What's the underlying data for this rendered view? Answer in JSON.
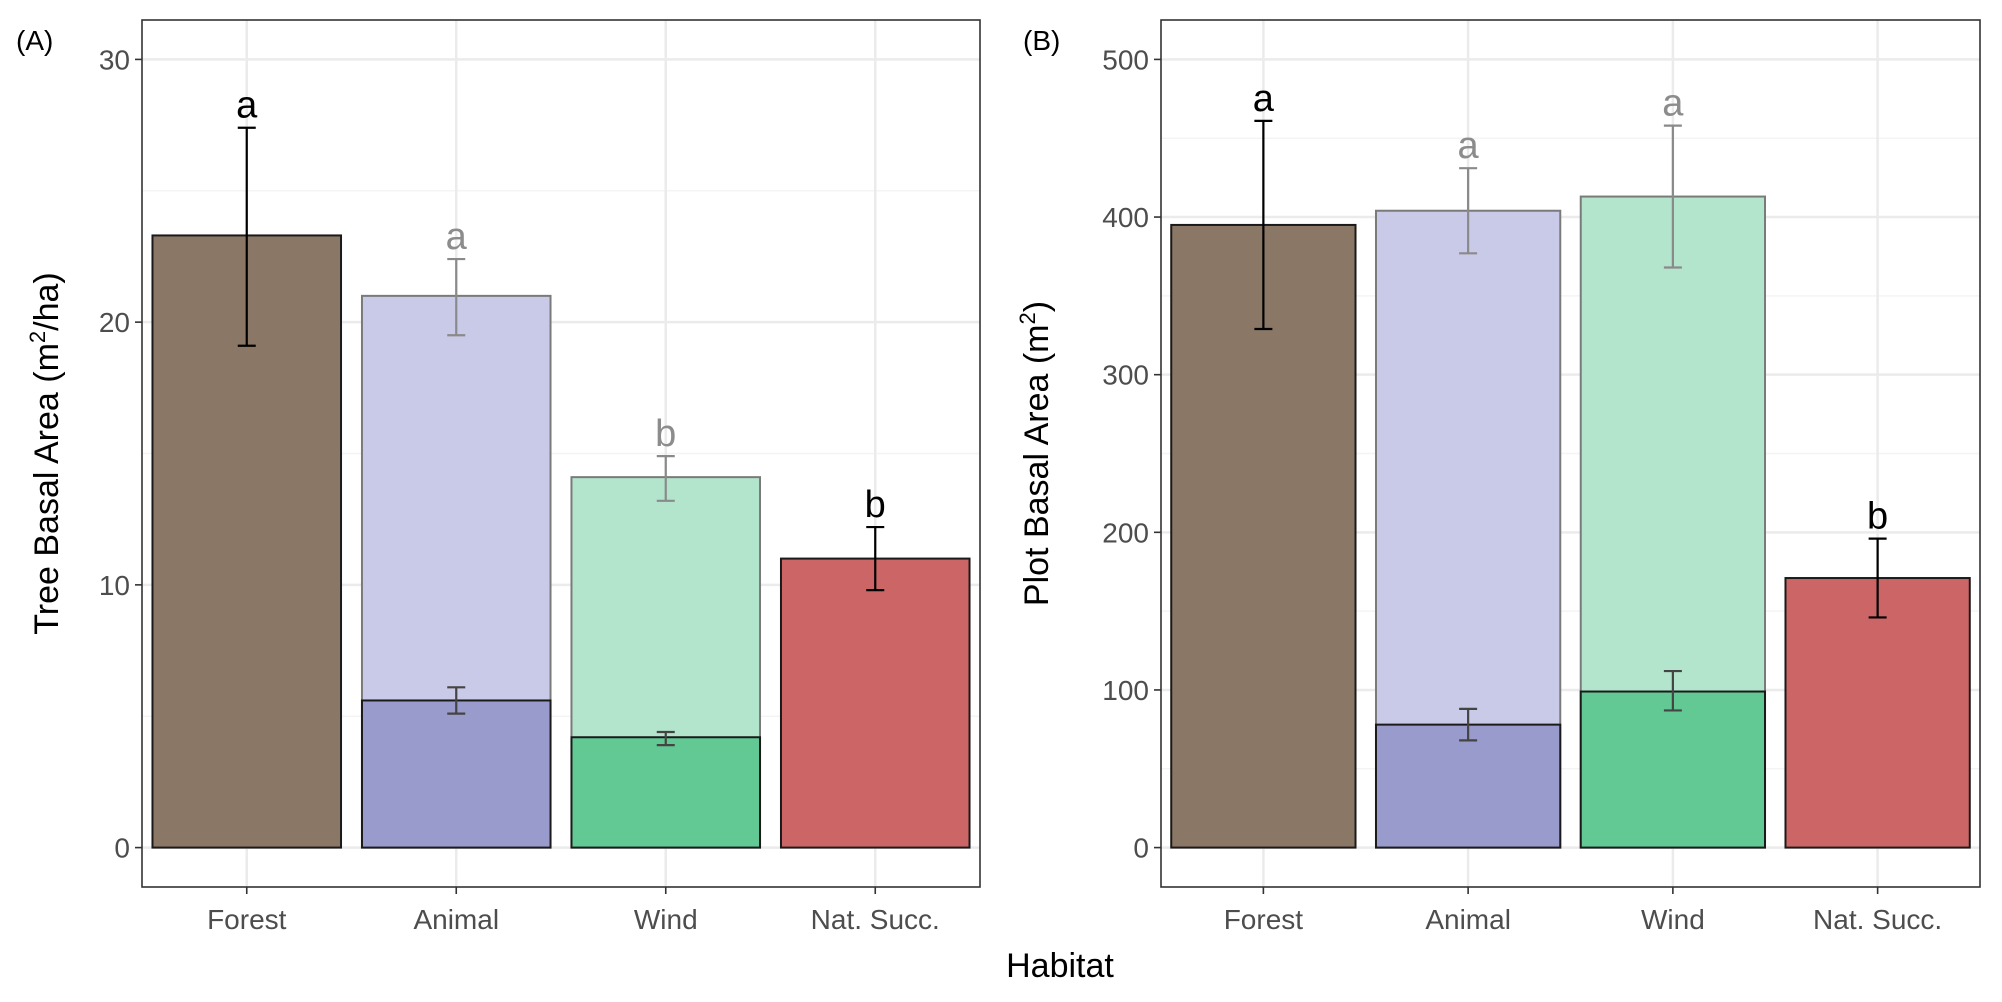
{
  "figure": {
    "shared_xlabel": "Habitat",
    "colors": {
      "forest": "#8b7765",
      "animal": "#9a9bcd",
      "animal_light": "#c9cae8",
      "wind": "#62c995",
      "wind_light": "#b3e4cc",
      "nat_succ": "#cc6566",
      "grid_major": "#ebebeb",
      "grid_minor": "#f4f4f4",
      "panel_border": "#333333",
      "tick_text": "#4d4d4d",
      "letter_dark": "#000000",
      "letter_faded": "#8c8c8c"
    }
  },
  "chart_data": [
    {
      "panel": "(A)",
      "type": "bar",
      "ylabel": "Tree Basal Area (m²/ha)",
      "ylabel_parts": [
        "Tree Basal Area (m",
        "2",
        "/ha)"
      ],
      "xlabel": "Habitat",
      "categories": [
        "Forest",
        "Animal",
        "Wind",
        "Nat. Succ."
      ],
      "ylim": [
        -1.5,
        31.5
      ],
      "yticks": [
        0,
        10,
        20,
        30
      ],
      "ytick_labels": [
        "0",
        "10",
        "20",
        "30"
      ],
      "grid": true,
      "total_bars": [
        {
          "category": "Forest",
          "value": 23.3,
          "err_low": 19.1,
          "err_high": 27.4,
          "letter": "a",
          "faded": false
        },
        {
          "category": "Animal",
          "value": 21.0,
          "err_low": 19.5,
          "err_high": 22.4,
          "letter": "a",
          "faded": true
        },
        {
          "category": "Wind",
          "value": 14.1,
          "err_low": 13.2,
          "err_high": 14.9,
          "letter": "b",
          "faded": true
        },
        {
          "category": "Nat. Succ.",
          "value": 11.0,
          "err_low": 9.8,
          "err_high": 12.2,
          "letter": "b",
          "faded": false
        }
      ],
      "inner_bars": [
        {
          "category": "Animal",
          "value": 5.6,
          "err_low": 5.1,
          "err_high": 6.1
        },
        {
          "category": "Wind",
          "value": 4.2,
          "err_low": 3.9,
          "err_high": 4.4
        }
      ]
    },
    {
      "panel": "(B)",
      "type": "bar",
      "ylabel": "Plot Basal Area (m²)",
      "ylabel_parts": [
        "Plot Basal Area (m",
        "2",
        ")"
      ],
      "xlabel": "Habitat",
      "categories": [
        "Forest",
        "Animal",
        "Wind",
        "Nat. Succ."
      ],
      "ylim": [
        -25,
        525
      ],
      "yticks": [
        0,
        100,
        200,
        300,
        400,
        500
      ],
      "ytick_labels": [
        "0",
        "100",
        "200",
        "300",
        "400",
        "500"
      ],
      "grid": true,
      "total_bars": [
        {
          "category": "Forest",
          "value": 395,
          "err_low": 329,
          "err_high": 461,
          "letter": "a",
          "faded": false
        },
        {
          "category": "Animal",
          "value": 404,
          "err_low": 377,
          "err_high": 431,
          "letter": "a",
          "faded": true
        },
        {
          "category": "Wind",
          "value": 413,
          "err_low": 368,
          "err_high": 458,
          "letter": "a",
          "faded": true
        },
        {
          "category": "Nat. Succ.",
          "value": 171,
          "err_low": 146,
          "err_high": 196,
          "letter": "b",
          "faded": false
        }
      ],
      "inner_bars": [
        {
          "category": "Animal",
          "value": 78,
          "err_low": 68,
          "err_high": 88
        },
        {
          "category": "Wind",
          "value": 99,
          "err_low": 87,
          "err_high": 112
        }
      ]
    }
  ]
}
